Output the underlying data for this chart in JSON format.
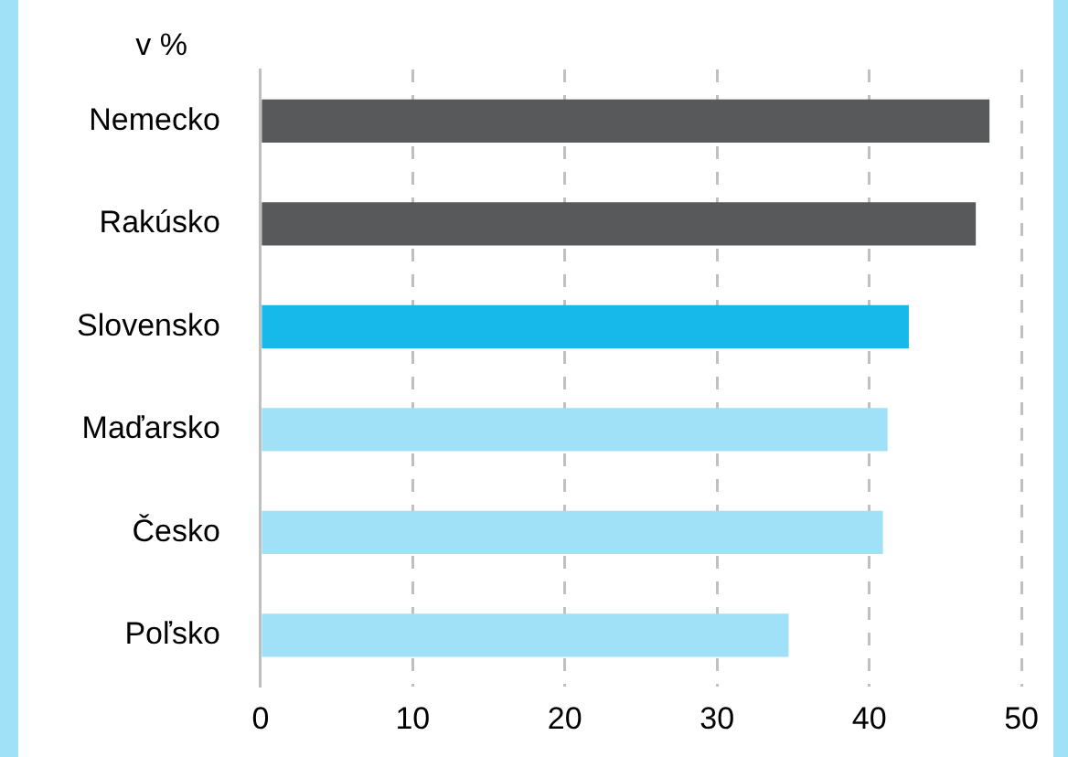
{
  "chart_data": {
    "type": "bar",
    "orientation": "horizontal",
    "ylabel": "v %",
    "categories": [
      "Nemecko",
      "Rakúsko",
      "Slovensko",
      "Maďarsko",
      "Česko",
      "Poľsko"
    ],
    "values": [
      47.9,
      47.0,
      42.6,
      41.2,
      40.9,
      34.7
    ],
    "colors": [
      "#58595b",
      "#58595b",
      "#17b8ea",
      "#a0e1f7",
      "#a0e1f7",
      "#a0e1f7"
    ],
    "xlim": [
      0,
      50
    ],
    "xticks": [
      0,
      10,
      20,
      30,
      40,
      50
    ],
    "grid": "x",
    "legend": false
  }
}
